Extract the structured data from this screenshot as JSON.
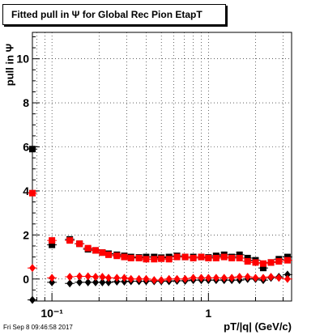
{
  "title": "Fitted pull in Ψ  for Global Rec Pion EtapT",
  "timestamp": "Fri Sep  8 09:46:58 2017",
  "chart_data": {
    "type": "scatter",
    "title": "Fitted pull in Ψ  for Global Rec Pion EtapT",
    "xlabel": "pT/|q| (GeV/c)",
    "ylabel": "pull in Ψ",
    "xscale": "log",
    "xlim": [
      0.075,
      3.4
    ],
    "ylim": [
      -1.0,
      11.2
    ],
    "grid": true,
    "x_tick_labels": [
      "10⁻¹",
      "1"
    ],
    "y_tick_labels": [
      "0",
      "2",
      "4",
      "6",
      "8",
      "10"
    ],
    "x_ticks": [
      0.1,
      1
    ],
    "y_ticks": [
      0,
      2,
      4,
      6,
      8,
      10
    ],
    "x": [
      0.075,
      0.1,
      0.13,
      0.15,
      0.17,
      0.19,
      0.21,
      0.23,
      0.26,
      0.29,
      0.32,
      0.36,
      0.4,
      0.45,
      0.5,
      0.56,
      0.63,
      0.71,
      0.8,
      0.9,
      1.0,
      1.12,
      1.26,
      1.41,
      1.58,
      1.78,
      2.0,
      2.24,
      2.51,
      2.82,
      3.2
    ],
    "series": [
      {
        "color": "#000000",
        "marker": "square",
        "values": [
          5.9,
          1.55,
          1.8,
          1.6,
          1.35,
          1.3,
          1.2,
          1.15,
          1.1,
          1.05,
          1.0,
          0.98,
          1.0,
          1.0,
          0.97,
          1.0,
          1.05,
          1.0,
          1.0,
          1.0,
          0.98,
          1.05,
          1.1,
          1.0,
          1.1,
          0.95,
          0.85,
          0.5,
          0.75,
          0.9,
          1.0
        ]
      },
      {
        "color": "#ff0000",
        "marker": "square",
        "values": [
          3.9,
          1.75,
          1.75,
          1.6,
          1.4,
          1.3,
          1.2,
          1.1,
          1.05,
          1.0,
          0.95,
          0.95,
          0.9,
          0.9,
          0.92,
          0.9,
          1.0,
          1.0,
          0.95,
          1.0,
          0.95,
          0.95,
          1.0,
          0.95,
          0.95,
          0.8,
          0.75,
          0.7,
          0.75,
          0.8,
          0.85
        ]
      },
      {
        "color": "#000000",
        "marker": "diamond",
        "values": [
          -0.95,
          -0.15,
          -0.2,
          -0.15,
          -0.15,
          -0.15,
          -0.15,
          -0.15,
          -0.12,
          -0.12,
          -0.1,
          -0.1,
          -0.1,
          -0.1,
          -0.1,
          -0.1,
          -0.08,
          -0.08,
          -0.05,
          -0.05,
          -0.05,
          -0.05,
          -0.05,
          -0.05,
          -0.05,
          0.0,
          0.0,
          -0.05,
          0.05,
          0.1,
          0.2
        ]
      },
      {
        "color": "#ff0000",
        "marker": "diamond",
        "values": [
          0.5,
          0.05,
          0.1,
          0.12,
          0.12,
          0.1,
          0.1,
          0.05,
          0.05,
          0.05,
          0.0,
          0.0,
          0.0,
          -0.05,
          -0.05,
          0.0,
          0.0,
          0.0,
          0.05,
          0.05,
          0.05,
          0.05,
          0.05,
          0.05,
          0.1,
          0.1,
          0.05,
          0.05,
          0.1,
          0.05,
          0.0
        ]
      }
    ]
  }
}
